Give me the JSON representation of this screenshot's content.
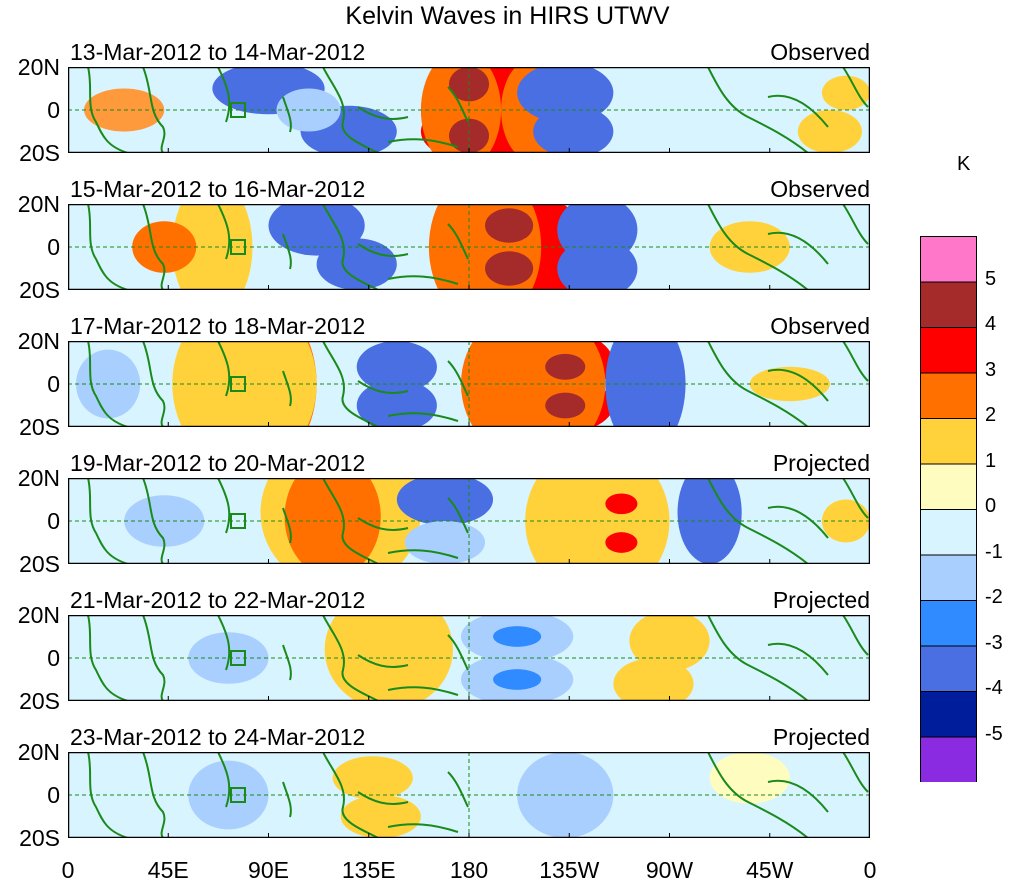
{
  "title": "Kelvin Waves in HIRS UTWV",
  "lat_labels": [
    "20N",
    "0",
    "20S"
  ],
  "lon_labels": [
    "0",
    "45E",
    "90E",
    "135E",
    "180",
    "135W",
    "90W",
    "45W",
    "0"
  ],
  "panels": [
    {
      "range": "13-Mar-2012 to 14-Mar-2012",
      "status": "Observed",
      "blobs": [
        [
          0.53,
          0.2,
          0.08,
          0.45,
          "#ff0000"
        ],
        [
          0.53,
          0.75,
          0.09,
          0.4,
          "#ff0000"
        ],
        [
          0.49,
          0.5,
          0.05,
          0.7,
          "#ff7000"
        ],
        [
          0.58,
          0.5,
          0.04,
          0.6,
          "#ff7000"
        ],
        [
          0.5,
          0.2,
          0.025,
          0.2,
          "#a52a2a"
        ],
        [
          0.5,
          0.8,
          0.025,
          0.2,
          "#a52a2a"
        ],
        [
          0.25,
          0.25,
          0.07,
          0.3,
          "#4a6fe3"
        ],
        [
          0.35,
          0.75,
          0.06,
          0.3,
          "#4a6fe3"
        ],
        [
          0.62,
          0.3,
          0.06,
          0.35,
          "#4a6fe3"
        ],
        [
          0.63,
          0.75,
          0.05,
          0.3,
          "#4a6fe3"
        ],
        [
          0.07,
          0.5,
          0.05,
          0.25,
          "#ff9a3c"
        ],
        [
          0.97,
          0.3,
          0.03,
          0.2,
          "#ffd23c"
        ],
        [
          0.95,
          0.75,
          0.04,
          0.25,
          "#ffd23c"
        ],
        [
          0.3,
          0.5,
          0.04,
          0.25,
          "#a9cfff"
        ]
      ]
    },
    {
      "range": "15-Mar-2012 to 16-Mar-2012",
      "status": "Observed",
      "blobs": [
        [
          0.55,
          0.3,
          0.09,
          0.45,
          "#ff0000"
        ],
        [
          0.55,
          0.75,
          0.09,
          0.4,
          "#ff0000"
        ],
        [
          0.52,
          0.5,
          0.07,
          0.9,
          "#ff7000"
        ],
        [
          0.55,
          0.25,
          0.03,
          0.2,
          "#a52a2a"
        ],
        [
          0.55,
          0.75,
          0.03,
          0.2,
          "#a52a2a"
        ],
        [
          0.66,
          0.3,
          0.05,
          0.4,
          "#4a6fe3"
        ],
        [
          0.66,
          0.75,
          0.05,
          0.35,
          "#4a6fe3"
        ],
        [
          0.31,
          0.25,
          0.06,
          0.35,
          "#4a6fe3"
        ],
        [
          0.36,
          0.7,
          0.05,
          0.3,
          "#4a6fe3"
        ],
        [
          0.18,
          0.5,
          0.05,
          0.8,
          "#ffd23c"
        ],
        [
          0.12,
          0.5,
          0.04,
          0.3,
          "#ff7000"
        ],
        [
          0.85,
          0.5,
          0.05,
          0.3,
          "#ffd23c"
        ]
      ]
    },
    {
      "range": "17-Mar-2012 to 18-Mar-2012",
      "status": "Observed",
      "blobs": [
        [
          0.6,
          0.25,
          0.08,
          0.4,
          "#ff0000"
        ],
        [
          0.6,
          0.75,
          0.08,
          0.35,
          "#ff0000"
        ],
        [
          0.58,
          0.5,
          0.09,
          0.9,
          "#ff7000"
        ],
        [
          0.62,
          0.3,
          0.025,
          0.15,
          "#a52a2a"
        ],
        [
          0.62,
          0.75,
          0.025,
          0.15,
          "#a52a2a"
        ],
        [
          0.25,
          0.5,
          0.06,
          0.9,
          "#ff7000"
        ],
        [
          0.22,
          0.5,
          0.09,
          1.0,
          "#ffd23c"
        ],
        [
          0.41,
          0.3,
          0.05,
          0.3,
          "#4a6fe3"
        ],
        [
          0.41,
          0.75,
          0.05,
          0.3,
          "#4a6fe3"
        ],
        [
          0.72,
          0.5,
          0.05,
          0.8,
          "#4a6fe3"
        ],
        [
          0.9,
          0.5,
          0.05,
          0.2,
          "#ffd23c"
        ],
        [
          0.05,
          0.5,
          0.04,
          0.4,
          "#a9cfff"
        ]
      ]
    },
    {
      "range": "19-Mar-2012 to 20-Mar-2012",
      "status": "Projected",
      "blobs": [
        [
          0.34,
          0.4,
          0.1,
          0.9,
          "#ffd23c"
        ],
        [
          0.33,
          0.45,
          0.06,
          0.7,
          "#ff7000"
        ],
        [
          0.68,
          0.3,
          0.06,
          0.35,
          "#ff7000"
        ],
        [
          0.68,
          0.75,
          0.06,
          0.3,
          "#ff7000"
        ],
        [
          0.66,
          0.5,
          0.09,
          0.9,
          "#ffd23c"
        ],
        [
          0.69,
          0.3,
          0.02,
          0.12,
          "#ff0000"
        ],
        [
          0.69,
          0.75,
          0.02,
          0.12,
          "#ff0000"
        ],
        [
          0.47,
          0.25,
          0.06,
          0.3,
          "#4a6fe3"
        ],
        [
          0.47,
          0.75,
          0.05,
          0.25,
          "#a9cfff"
        ],
        [
          0.8,
          0.4,
          0.04,
          0.6,
          "#4a6fe3"
        ],
        [
          0.12,
          0.5,
          0.05,
          0.3,
          "#a9cfff"
        ],
        [
          0.97,
          0.5,
          0.03,
          0.25,
          "#ffd23c"
        ]
      ]
    },
    {
      "range": "21-Mar-2012 to 22-Mar-2012",
      "status": "Projected",
      "blobs": [
        [
          0.4,
          0.4,
          0.08,
          0.7,
          "#ffd23c"
        ],
        [
          0.75,
          0.3,
          0.05,
          0.35,
          "#ffd23c"
        ],
        [
          0.73,
          0.8,
          0.05,
          0.3,
          "#ffd23c"
        ],
        [
          0.56,
          0.25,
          0.07,
          0.3,
          "#a9cfff"
        ],
        [
          0.56,
          0.75,
          0.07,
          0.3,
          "#a9cfff"
        ],
        [
          0.56,
          0.25,
          0.03,
          0.12,
          "#2f8bff"
        ],
        [
          0.56,
          0.75,
          0.03,
          0.12,
          "#2f8bff"
        ],
        [
          0.2,
          0.5,
          0.05,
          0.3,
          "#a9cfff"
        ]
      ]
    },
    {
      "range": "23-Mar-2012 to 24-Mar-2012",
      "status": "Projected",
      "blobs": [
        [
          0.38,
          0.3,
          0.05,
          0.25,
          "#ffd23c"
        ],
        [
          0.39,
          0.75,
          0.05,
          0.25,
          "#ffd23c"
        ],
        [
          0.62,
          0.5,
          0.06,
          0.5,
          "#a9cfff"
        ],
        [
          0.2,
          0.5,
          0.05,
          0.4,
          "#a9cfff"
        ],
        [
          0.85,
          0.3,
          0.05,
          0.3,
          "#fffcc0"
        ]
      ]
    }
  ],
  "colorbar": {
    "unit": "K",
    "colors": [
      "#ff77c8",
      "#a52a2a",
      "#ff0000",
      "#ff7000",
      "#ffd23c",
      "#fffcc0",
      "#d8f4ff",
      "#a9cfff",
      "#2f8bff",
      "#4a6fe3",
      "#001d9c",
      "#8a2be2"
    ],
    "labels": [
      "5",
      "4",
      "3",
      "2",
      "1",
      "0",
      "-1",
      "-2",
      "-3",
      "-4",
      "-5"
    ]
  }
}
